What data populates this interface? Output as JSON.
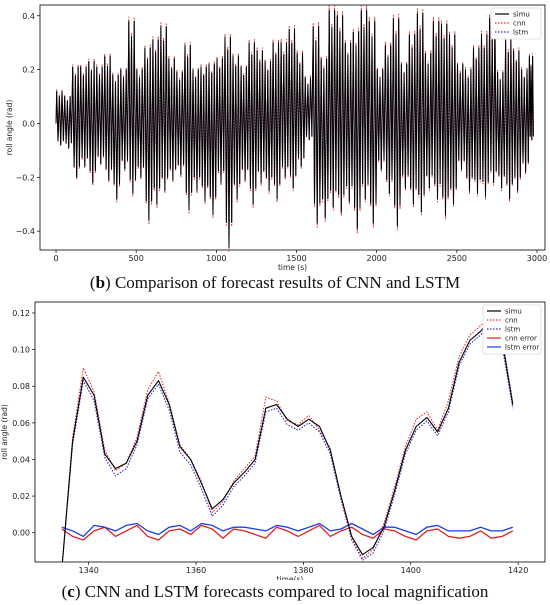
{
  "captions": {
    "b": {
      "letter": "b",
      "text": " Comparison of forecast results of CNN and LSTM"
    },
    "c": {
      "letter": "c",
      "text": " CNN and LSTM forecasts compared to local magnification"
    }
  },
  "chart_data": [
    {
      "type": "line",
      "xlabel": "time (s)",
      "ylabel": "roll angle (rad)",
      "xlim": [
        -100,
        3050
      ],
      "ylim": [
        -0.47,
        0.44
      ],
      "xticks": [
        0,
        500,
        1000,
        1500,
        2000,
        2500,
        3000
      ],
      "yticks": [
        -0.4,
        -0.2,
        0.0,
        0.2,
        0.4
      ],
      "ytick_labels": [
        "−0.4",
        "−0.2",
        "0.0",
        "0.2",
        "0.4"
      ],
      "legend_position": "top-right",
      "legend": [
        "simu",
        "cnn",
        "lstm"
      ],
      "grid": false,
      "series": [
        {
          "name": "simu",
          "color": "#000000",
          "style": "solid"
        },
        {
          "name": "cnn",
          "color": "#e03030",
          "style": "dotted"
        },
        {
          "name": "lstm",
          "color": "#2b2bd6",
          "style": "dotted"
        }
      ],
      "peaks": {
        "t": [
          0,
          50,
          100,
          150,
          200,
          250,
          300,
          350,
          400,
          450,
          500,
          550,
          600,
          650,
          700,
          750,
          800,
          850,
          900,
          950,
          1000,
          1050,
          1100,
          1150,
          1200,
          1250,
          1300,
          1350,
          1400,
          1450,
          1500,
          1550,
          1600,
          1650,
          1700,
          1750,
          1800,
          1850,
          1900,
          1950,
          2000,
          2050,
          2100,
          2150,
          2200,
          2250,
          2300,
          2350,
          2400,
          2450,
          2500,
          2550,
          2600,
          2650,
          2700,
          2750,
          2800,
          2850,
          2900,
          2950
        ],
        "max": [
          0.12,
          0.1,
          0.21,
          0.21,
          0.23,
          0.21,
          0.25,
          0.18,
          0.2,
          0.38,
          0.2,
          0.28,
          0.31,
          0.36,
          0.24,
          0.19,
          0.29,
          0.2,
          0.21,
          0.22,
          0.24,
          0.32,
          0.25,
          0.21,
          0.3,
          0.27,
          0.23,
          0.3,
          0.3,
          0.35,
          0.26,
          0.17,
          0.36,
          0.24,
          0.42,
          0.4,
          0.3,
          0.34,
          0.42,
          0.38,
          0.2,
          0.29,
          0.39,
          0.22,
          0.33,
          0.41,
          0.26,
          0.38,
          0.37,
          0.33,
          0.22,
          0.2,
          0.28,
          0.33,
          0.39,
          0.19,
          0.31,
          0.27,
          0.2,
          0.25
        ],
        "min": [
          -0.08,
          -0.09,
          -0.2,
          -0.16,
          -0.22,
          -0.15,
          -0.21,
          -0.28,
          -0.17,
          -0.26,
          -0.2,
          -0.36,
          -0.3,
          -0.25,
          -0.21,
          -0.19,
          -0.32,
          -0.25,
          -0.29,
          -0.34,
          -0.22,
          -0.46,
          -0.28,
          -0.21,
          -0.3,
          -0.22,
          -0.25,
          -0.28,
          -0.2,
          -0.24,
          -0.16,
          -0.06,
          -0.37,
          -0.35,
          -0.31,
          -0.33,
          -0.29,
          -0.39,
          -0.28,
          -0.37,
          -0.17,
          -0.26,
          -0.38,
          -0.24,
          -0.3,
          -0.33,
          -0.24,
          -0.28,
          -0.34,
          -0.3,
          -0.17,
          -0.25,
          -0.26,
          -0.27,
          -0.22,
          -0.24,
          -0.28,
          -0.25,
          -0.18,
          -0.06
        ]
      }
    },
    {
      "type": "line",
      "xlabel": "time(s)",
      "ylabel": "roll angle (rad)",
      "xlim": [
        1330,
        1425
      ],
      "ylim": [
        -0.016,
        0.126
      ],
      "xticks": [
        1340,
        1360,
        1380,
        1400,
        1420
      ],
      "yticks": [
        0.0,
        0.02,
        0.04,
        0.06,
        0.08,
        0.1,
        0.12
      ],
      "ytick_labels": [
        "0.00",
        "0.02",
        "0.04",
        "0.06",
        "0.08",
        "0.10",
        "0.12"
      ],
      "legend_position": "top-right",
      "legend": [
        "simu",
        "cnn",
        "lstm",
        "cnn error",
        "lstm error"
      ],
      "grid": false,
      "x": [
        1335,
        1337,
        1339,
        1341,
        1343,
        1345,
        1347,
        1349,
        1351,
        1353,
        1355,
        1357,
        1359,
        1361,
        1363,
        1365,
        1367,
        1369,
        1371,
        1373,
        1375,
        1377,
        1379,
        1381,
        1383,
        1385,
        1387,
        1389,
        1391,
        1393,
        1395,
        1397,
        1399,
        1401,
        1403,
        1405,
        1407,
        1409,
        1411,
        1413,
        1415,
        1417,
        1419
      ],
      "series": [
        {
          "name": "simu",
          "color": "#000000",
          "style": "solid",
          "values": [
            -0.02,
            0.05,
            0.085,
            0.075,
            0.043,
            0.035,
            0.038,
            0.05,
            0.075,
            0.083,
            0.07,
            0.047,
            0.04,
            0.027,
            0.013,
            0.018,
            0.027,
            0.033,
            0.04,
            0.068,
            0.07,
            0.062,
            0.058,
            0.062,
            0.058,
            0.045,
            0.02,
            -0.002,
            -0.012,
            -0.008,
            0.003,
            0.023,
            0.045,
            0.058,
            0.063,
            0.055,
            0.068,
            0.093,
            0.105,
            0.11,
            0.117,
            0.105,
            0.07
          ]
        },
        {
          "name": "cnn",
          "color": "#e03030",
          "style": "dotted",
          "values": [
            -0.02,
            0.052,
            0.09,
            0.077,
            0.045,
            0.034,
            0.038,
            0.052,
            0.078,
            0.088,
            0.071,
            0.048,
            0.04,
            0.028,
            0.011,
            0.017,
            0.028,
            0.035,
            0.042,
            0.074,
            0.072,
            0.061,
            0.059,
            0.064,
            0.056,
            0.046,
            0.019,
            -0.003,
            -0.014,
            -0.009,
            0.005,
            0.025,
            0.047,
            0.062,
            0.066,
            0.056,
            0.072,
            0.096,
            0.108,
            0.113,
            0.12,
            0.107,
            0.071
          ]
        },
        {
          "name": "lstm",
          "color": "#2b2bd6",
          "style": "dotted",
          "values": [
            -0.02,
            0.048,
            0.083,
            0.072,
            0.041,
            0.031,
            0.035,
            0.048,
            0.073,
            0.081,
            0.067,
            0.044,
            0.037,
            0.024,
            0.009,
            0.015,
            0.025,
            0.031,
            0.038,
            0.066,
            0.068,
            0.059,
            0.056,
            0.06,
            0.055,
            0.043,
            0.018,
            -0.004,
            -0.015,
            -0.011,
            0.001,
            0.021,
            0.043,
            0.056,
            0.061,
            0.053,
            0.066,
            0.091,
            0.103,
            0.108,
            0.115,
            0.102,
            0.068
          ]
        },
        {
          "name": "cnn error",
          "color": "#e02020",
          "style": "solid",
          "values": [
            0.002,
            -0.002,
            -0.004,
            0.001,
            0.003,
            -0.002,
            0.001,
            0.004,
            -0.002,
            -0.004,
            0.001,
            0.002,
            -0.001,
            0.004,
            0.002,
            -0.003,
            0.002,
            0.001,
            -0.001,
            -0.003,
            0.003,
            0.001,
            -0.002,
            0.001,
            0.004,
            -0.002,
            0.001,
            0.003,
            -0.001,
            -0.003,
            0.002,
            0.001,
            -0.002,
            -0.004,
            0.001,
            0.002,
            -0.002,
            -0.003,
            -0.002,
            0.001,
            -0.003,
            -0.002,
            0.001
          ]
        },
        {
          "name": "lstm error",
          "color": "#1a3ee8",
          "style": "solid",
          "values": [
            0.003,
            0.001,
            -0.002,
            0.004,
            0.003,
            0.001,
            0.004,
            0.005,
            0.001,
            -0.001,
            0.003,
            0.004,
            0.001,
            0.005,
            0.004,
            0.001,
            0.003,
            0.003,
            0.002,
            0.001,
            0.004,
            0.003,
            0.001,
            0.003,
            0.005,
            0.001,
            0.002,
            0.005,
            0.002,
            -0.001,
            0.003,
            0.003,
            0.001,
            -0.001,
            0.003,
            0.004,
            0.001,
            0.001,
            0.001,
            0.003,
            0.001,
            0.001,
            0.003
          ]
        }
      ]
    }
  ]
}
